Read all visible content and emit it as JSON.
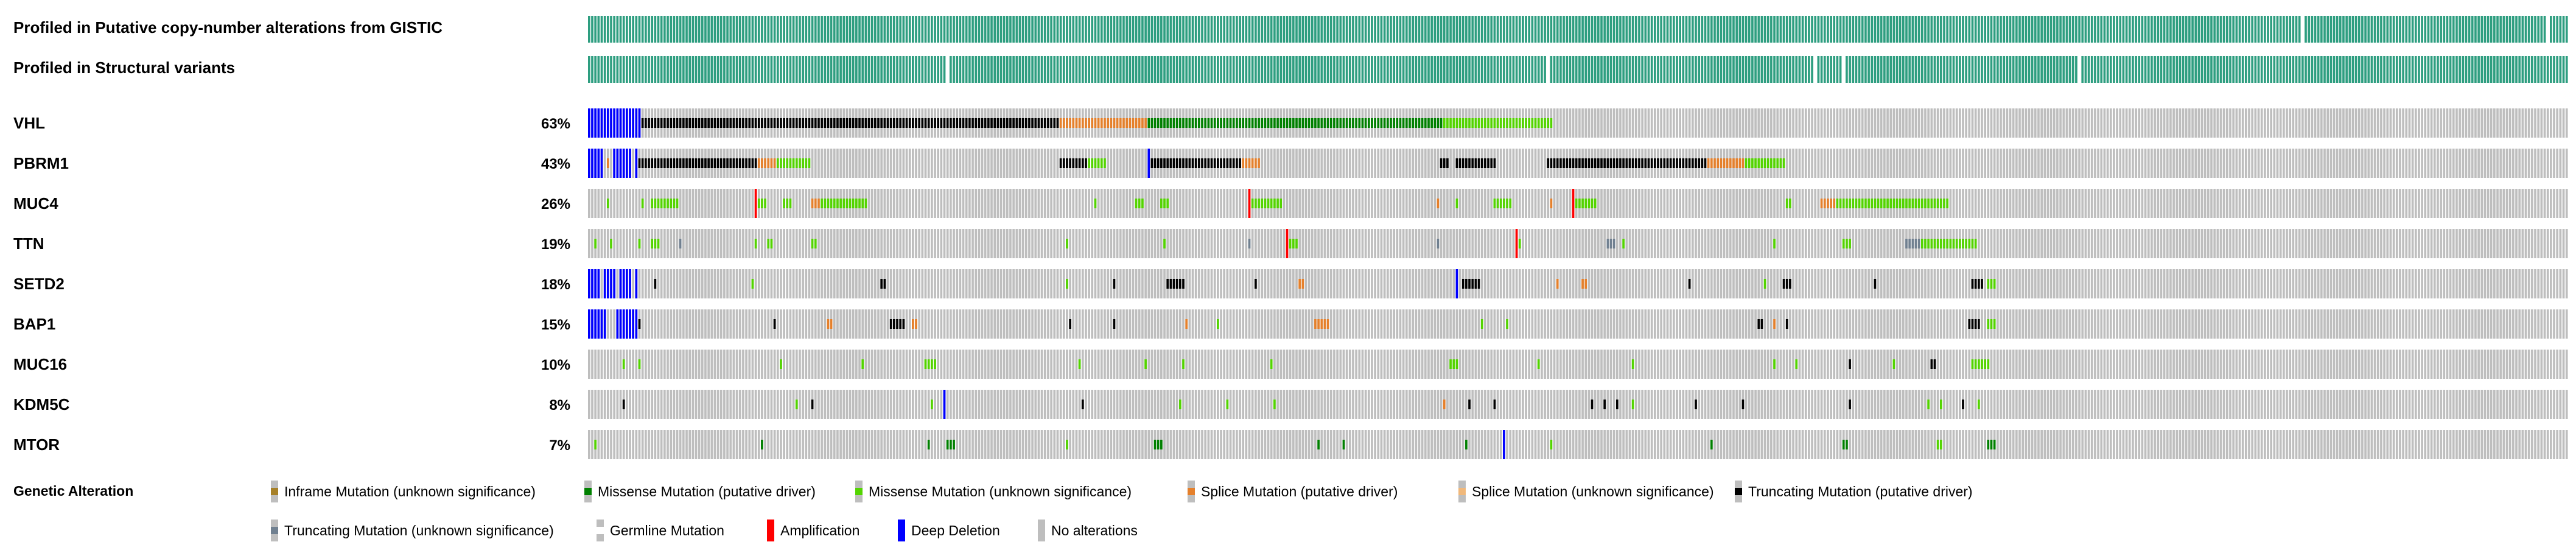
{
  "profiled_tracks": [
    {
      "label": "Profiled in Putative copy-number alterations from GISTIC",
      "gap_columns": [
        545,
        623
      ]
    },
    {
      "label": "Profiled in Structural variants",
      "gap_columns": [
        114,
        305,
        390,
        399,
        474
      ]
    }
  ],
  "profiled_color": "#2e9e80",
  "unaltered_color": "#bebebe",
  "chart_data": {
    "type": "oncoprint",
    "sample_columns": 630,
    "alteration_colors": {
      "inframe_unknown": "#a68028",
      "missense_driver": "#008000",
      "missense_unknown": "#53d400",
      "splice_driver": "#e5802b",
      "splice_unknown": "#f0b87b",
      "trunc_driver": "#000000",
      "trunc_unknown": "#708090",
      "germline": "#ffffff",
      "amplification": "#ff0000",
      "deep_deletion": "#0000ff"
    },
    "genes": [
      {
        "gene": "VHL",
        "percent": "63%",
        "segments": [
          [
            0,
            16,
            "deep_deletion"
          ],
          [
            17,
            149,
            "trunc_driver"
          ],
          [
            150,
            177,
            "splice_driver"
          ],
          [
            178,
            271,
            "missense_driver"
          ],
          [
            272,
            306,
            "missense_unknown"
          ]
        ]
      },
      {
        "gene": "PBRM1",
        "percent": "43%",
        "segments": [
          [
            0,
            4,
            "deep_deletion"
          ],
          [
            6,
            6,
            "splice_driver"
          ],
          [
            8,
            13,
            "deep_deletion"
          ],
          [
            15,
            15,
            "deep_deletion"
          ],
          [
            16,
            53,
            "trunc_driver"
          ],
          [
            54,
            59,
            "splice_driver"
          ],
          [
            60,
            70,
            "missense_unknown"
          ],
          [
            150,
            158,
            "trunc_driver"
          ],
          [
            159,
            164,
            "missense_unknown"
          ],
          [
            178,
            178,
            "deep_deletion"
          ],
          [
            179,
            207,
            "trunc_driver"
          ],
          [
            208,
            213,
            "splice_driver"
          ],
          [
            271,
            273,
            "trunc_driver"
          ],
          [
            276,
            288,
            "trunc_driver"
          ],
          [
            305,
            355,
            "trunc_driver"
          ],
          [
            356,
            367,
            "splice_driver"
          ],
          [
            368,
            380,
            "missense_unknown"
          ]
        ]
      },
      {
        "gene": "MUC4",
        "percent": "26%",
        "segments": [
          [
            6,
            6,
            "missense_unknown"
          ],
          [
            17,
            17,
            "missense_unknown"
          ],
          [
            20,
            28,
            "missense_unknown"
          ],
          [
            53,
            53,
            "amplification"
          ],
          [
            54,
            56,
            "missense_unknown"
          ],
          [
            62,
            64,
            "missense_unknown"
          ],
          [
            71,
            73,
            "splice_driver"
          ],
          [
            74,
            88,
            "missense_unknown"
          ],
          [
            161,
            161,
            "missense_unknown"
          ],
          [
            174,
            176,
            "missense_unknown"
          ],
          [
            182,
            184,
            "missense_unknown"
          ],
          [
            210,
            210,
            "amplification"
          ],
          [
            211,
            220,
            "missense_unknown"
          ],
          [
            270,
            270,
            "splice_driver"
          ],
          [
            276,
            276,
            "missense_unknown"
          ],
          [
            288,
            293,
            "missense_unknown"
          ],
          [
            306,
            306,
            "splice_driver"
          ],
          [
            313,
            313,
            "amplification"
          ],
          [
            314,
            320,
            "missense_unknown"
          ],
          [
            381,
            381,
            "missense_unknown"
          ],
          [
            382,
            382,
            "missense_unknown"
          ],
          [
            392,
            396,
            "splice_driver"
          ],
          [
            397,
            432,
            "missense_unknown"
          ]
        ]
      },
      {
        "gene": "TTN",
        "percent": "19%",
        "segments": [
          [
            2,
            2,
            "missense_unknown"
          ],
          [
            7,
            7,
            "missense_unknown"
          ],
          [
            16,
            16,
            "missense_unknown"
          ],
          [
            20,
            22,
            "missense_unknown"
          ],
          [
            29,
            29,
            "trunc_unknown"
          ],
          [
            53,
            53,
            "missense_unknown"
          ],
          [
            57,
            58,
            "missense_unknown"
          ],
          [
            71,
            72,
            "missense_unknown"
          ],
          [
            152,
            152,
            "missense_unknown"
          ],
          [
            183,
            183,
            "missense_unknown"
          ],
          [
            210,
            210,
            "trunc_unknown"
          ],
          [
            222,
            222,
            "amplification"
          ],
          [
            223,
            225,
            "missense_unknown"
          ],
          [
            270,
            270,
            "trunc_unknown"
          ],
          [
            295,
            295,
            "amplification"
          ],
          [
            296,
            296,
            "missense_unknown"
          ],
          [
            324,
            326,
            "trunc_unknown"
          ],
          [
            329,
            329,
            "missense_unknown"
          ],
          [
            377,
            377,
            "missense_unknown"
          ],
          [
            399,
            401,
            "missense_unknown"
          ],
          [
            419,
            423,
            "trunc_unknown"
          ],
          [
            424,
            441,
            "missense_unknown"
          ]
        ]
      },
      {
        "gene": "SETD2",
        "percent": "18%",
        "segments": [
          [
            0,
            3,
            "deep_deletion"
          ],
          [
            5,
            8,
            "deep_deletion"
          ],
          [
            10,
            13,
            "deep_deletion"
          ],
          [
            15,
            15,
            "deep_deletion"
          ],
          [
            21,
            21,
            "trunc_driver"
          ],
          [
            52,
            52,
            "missense_unknown"
          ],
          [
            93,
            94,
            "trunc_driver"
          ],
          [
            152,
            152,
            "missense_unknown"
          ],
          [
            167,
            167,
            "trunc_driver"
          ],
          [
            184,
            189,
            "trunc_driver"
          ],
          [
            212,
            212,
            "trunc_driver"
          ],
          [
            226,
            227,
            "splice_driver"
          ],
          [
            276,
            276,
            "deep_deletion"
          ],
          [
            278,
            283,
            "trunc_driver"
          ],
          [
            308,
            308,
            "splice_driver"
          ],
          [
            316,
            317,
            "splice_driver"
          ],
          [
            350,
            350,
            "trunc_driver"
          ],
          [
            374,
            374,
            "missense_unknown"
          ],
          [
            380,
            382,
            "trunc_driver"
          ],
          [
            409,
            409,
            "trunc_driver"
          ],
          [
            440,
            443,
            "trunc_driver"
          ],
          [
            445,
            447,
            "missense_unknown"
          ]
        ]
      },
      {
        "gene": "BAP1",
        "percent": "15%",
        "segments": [
          [
            0,
            5,
            "deep_deletion"
          ],
          [
            9,
            14,
            "deep_deletion"
          ],
          [
            15,
            15,
            "deep_deletion"
          ],
          [
            16,
            16,
            "trunc_driver"
          ],
          [
            59,
            59,
            "trunc_driver"
          ],
          [
            76,
            77,
            "splice_driver"
          ],
          [
            96,
            100,
            "trunc_driver"
          ],
          [
            103,
            104,
            "splice_driver"
          ],
          [
            153,
            153,
            "trunc_driver"
          ],
          [
            167,
            167,
            "trunc_driver"
          ],
          [
            190,
            190,
            "splice_driver"
          ],
          [
            200,
            200,
            "missense_unknown"
          ],
          [
            231,
            235,
            "splice_driver"
          ],
          [
            284,
            284,
            "missense_unknown"
          ],
          [
            292,
            292,
            "missense_unknown"
          ],
          [
            372,
            373,
            "trunc_driver"
          ],
          [
            377,
            377,
            "splice_driver"
          ],
          [
            381,
            381,
            "trunc_driver"
          ],
          [
            439,
            442,
            "trunc_driver"
          ],
          [
            445,
            447,
            "missense_unknown"
          ]
        ]
      },
      {
        "gene": "MUC16",
        "percent": "10%",
        "segments": [
          [
            11,
            11,
            "missense_unknown"
          ],
          [
            16,
            16,
            "missense_unknown"
          ],
          [
            61,
            61,
            "missense_unknown"
          ],
          [
            87,
            87,
            "missense_unknown"
          ],
          [
            107,
            110,
            "missense_unknown"
          ],
          [
            156,
            156,
            "missense_unknown"
          ],
          [
            177,
            177,
            "missense_unknown"
          ],
          [
            189,
            189,
            "missense_unknown"
          ],
          [
            217,
            217,
            "missense_unknown"
          ],
          [
            274,
            276,
            "missense_unknown"
          ],
          [
            302,
            302,
            "missense_unknown"
          ],
          [
            332,
            332,
            "missense_unknown"
          ],
          [
            377,
            377,
            "missense_unknown"
          ],
          [
            384,
            384,
            "missense_unknown"
          ],
          [
            401,
            401,
            "trunc_driver"
          ],
          [
            415,
            415,
            "missense_unknown"
          ],
          [
            427,
            428,
            "trunc_driver"
          ],
          [
            440,
            445,
            "missense_unknown"
          ]
        ]
      },
      {
        "gene": "KDM5C",
        "percent": "8%",
        "segments": [
          [
            11,
            11,
            "trunc_driver"
          ],
          [
            66,
            66,
            "missense_unknown"
          ],
          [
            71,
            71,
            "trunc_driver"
          ],
          [
            109,
            109,
            "missense_unknown"
          ],
          [
            113,
            113,
            "deep_deletion"
          ],
          [
            157,
            157,
            "trunc_driver"
          ],
          [
            188,
            188,
            "missense_unknown"
          ],
          [
            203,
            203,
            "missense_unknown"
          ],
          [
            218,
            218,
            "missense_unknown"
          ],
          [
            272,
            272,
            "splice_driver"
          ],
          [
            280,
            280,
            "trunc_driver"
          ],
          [
            288,
            288,
            "trunc_driver"
          ],
          [
            319,
            319,
            "trunc_driver"
          ],
          [
            323,
            323,
            "trunc_driver"
          ],
          [
            327,
            327,
            "trunc_driver"
          ],
          [
            332,
            332,
            "missense_unknown"
          ],
          [
            352,
            352,
            "trunc_driver"
          ],
          [
            367,
            367,
            "trunc_driver"
          ],
          [
            401,
            401,
            "trunc_driver"
          ],
          [
            426,
            426,
            "missense_unknown"
          ],
          [
            430,
            430,
            "missense_unknown"
          ],
          [
            437,
            437,
            "trunc_driver"
          ],
          [
            442,
            442,
            "missense_unknown"
          ]
        ]
      },
      {
        "gene": "MTOR",
        "percent": "7%",
        "segments": [
          [
            2,
            2,
            "missense_unknown"
          ],
          [
            55,
            55,
            "missense_driver"
          ],
          [
            108,
            108,
            "missense_driver"
          ],
          [
            114,
            116,
            "missense_driver"
          ],
          [
            152,
            152,
            "missense_unknown"
          ],
          [
            180,
            182,
            "missense_driver"
          ],
          [
            232,
            232,
            "missense_driver"
          ],
          [
            240,
            240,
            "missense_driver"
          ],
          [
            279,
            279,
            "missense_driver"
          ],
          [
            291,
            291,
            "deep_deletion"
          ],
          [
            306,
            306,
            "missense_unknown"
          ],
          [
            357,
            357,
            "missense_driver"
          ],
          [
            399,
            400,
            "missense_driver"
          ],
          [
            429,
            430,
            "missense_unknown"
          ],
          [
            445,
            447,
            "missense_driver"
          ]
        ]
      }
    ],
    "legend": {
      "title": "Genetic Alteration",
      "items": [
        {
          "key": "inframe_unknown",
          "label": "Inframe Mutation (unknown significance)"
        },
        {
          "key": "missense_driver",
          "label": "Missense Mutation (putative driver)"
        },
        {
          "key": "missense_unknown",
          "label": "Missense Mutation (unknown significance)"
        },
        {
          "key": "splice_driver",
          "label": "Splice Mutation (putative driver)"
        },
        {
          "key": "splice_unknown",
          "label": "Splice Mutation (unknown significance)"
        },
        {
          "key": "trunc_driver",
          "label": "Truncating Mutation (putative driver)"
        },
        {
          "key": "trunc_unknown",
          "label": "Truncating Mutation (unknown significance)"
        },
        {
          "key": "germline",
          "label": "Germline Mutation"
        },
        {
          "key": "amplification",
          "label": "Amplification"
        },
        {
          "key": "deep_deletion",
          "label": "Deep Deletion"
        },
        {
          "key": "none",
          "label": "No alterations"
        }
      ]
    }
  }
}
